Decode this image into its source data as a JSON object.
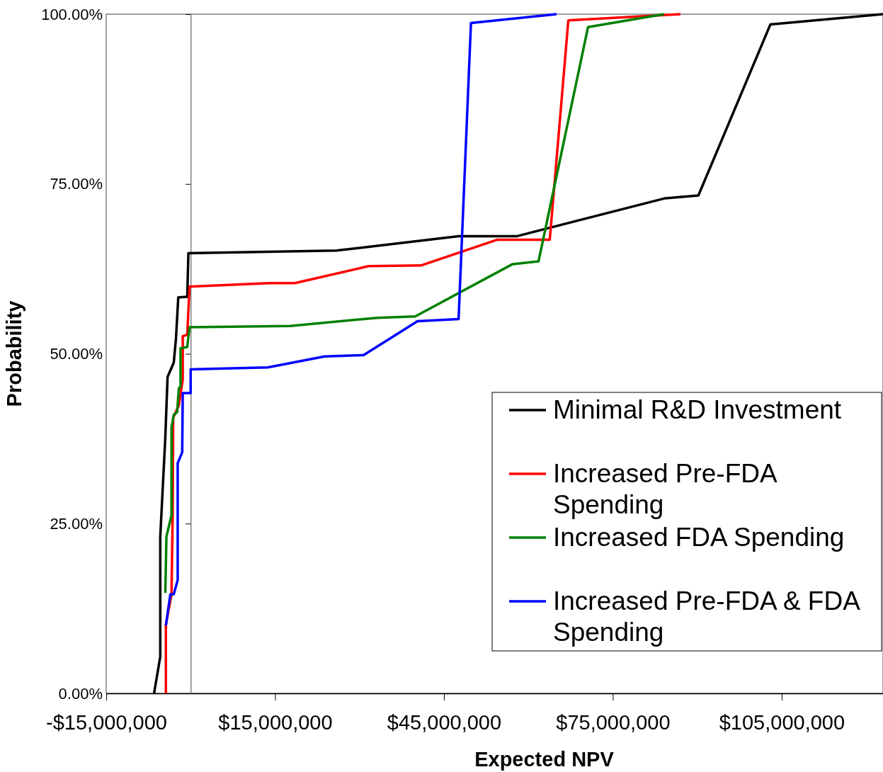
{
  "chart_data": {
    "type": "line",
    "xlabel": "Expected NPV",
    "ylabel": "Probability",
    "xlim": [
      -15000000,
      123000000
    ],
    "ylim": [
      0,
      100
    ],
    "xticks": [
      {
        "value": -15000000,
        "label": "-$15,000,000"
      },
      {
        "value": 15000000,
        "label": "$15,000,000"
      },
      {
        "value": 45000000,
        "label": "$45,000,000"
      },
      {
        "value": 75000000,
        "label": "$75,000,000"
      },
      {
        "value": 105000000,
        "label": "$105,000,000"
      }
    ],
    "yticks": [
      {
        "value": 0,
        "label": "0.00%"
      },
      {
        "value": 25,
        "label": "25.00%"
      },
      {
        "value": 50,
        "label": "50.00%"
      },
      {
        "value": 75,
        "label": "75.00%"
      },
      {
        "value": 100,
        "label": "100.00%"
      }
    ],
    "grid": false,
    "legend": "bottom right",
    "marker": "none",
    "line_style": "solid",
    "series": [
      {
        "name": "Minimal R&D Investment",
        "color": "#000000",
        "x": [
          -6500000,
          -5400000,
          -5400000,
          -4500000,
          -4100000,
          -3000000,
          -2600000,
          -2200000,
          -600000,
          -400000,
          25900000,
          47600000,
          57900000,
          84300000,
          90200000,
          103000000,
          123000000
        ],
        "values": [
          0,
          5.4,
          23,
          37.7,
          46.6,
          48.7,
          52.3,
          58.3,
          58.4,
          64.8,
          65.2,
          67.3,
          67.3,
          72.9,
          73.3,
          98.5,
          100
        ]
      },
      {
        "name": "Increased Pre-FDA Spending",
        "color": "#ff0000",
        "x": [
          -4400000,
          -4400000,
          -3400000,
          -3200000,
          -3100000,
          -2100000,
          -1400000,
          -1400000,
          -600000,
          -200000,
          300000,
          14000000,
          18500000,
          31600000,
          40900000,
          54500000,
          63800000,
          67100000,
          87000000
        ],
        "values": [
          0,
          10.1,
          14.6,
          26,
          40.6,
          42.4,
          46.2,
          52.6,
          52.8,
          59.9,
          59.9,
          60.4,
          60.4,
          62.9,
          63,
          66.8,
          66.8,
          99.1,
          100
        ]
      },
      {
        "name": "Increased FDA Spending",
        "color": "#008000",
        "x": [
          -4500000,
          -4300000,
          -3400000,
          -3400000,
          -3000000,
          -2400000,
          -2100000,
          -1800000,
          -1800000,
          -600000,
          -200000,
          17700000,
          33200000,
          39900000,
          57200000,
          61800000,
          70600000,
          84100000
        ],
        "values": [
          14.8,
          23.1,
          26.2,
          39.2,
          41,
          41.4,
          44.9,
          45.2,
          50.8,
          51,
          53.9,
          54.1,
          55.3,
          55.5,
          63.2,
          63.6,
          98.1,
          100
        ]
      },
      {
        "name": "Increased Pre-FDA & FDA Spending",
        "color": "#0000ff",
        "x": [
          -4400000,
          -3600000,
          -3000000,
          -2300000,
          -2300000,
          -1500000,
          -1400000,
          0,
          0,
          13700000,
          23800000,
          30700000,
          40300000,
          47600000,
          49800000,
          65000000
        ],
        "values": [
          10,
          14.6,
          14.6,
          16.7,
          33.9,
          35.5,
          44.2,
          44.2,
          47.7,
          48,
          49.6,
          49.8,
          54.8,
          55.1,
          98.7,
          100
        ]
      }
    ]
  }
}
